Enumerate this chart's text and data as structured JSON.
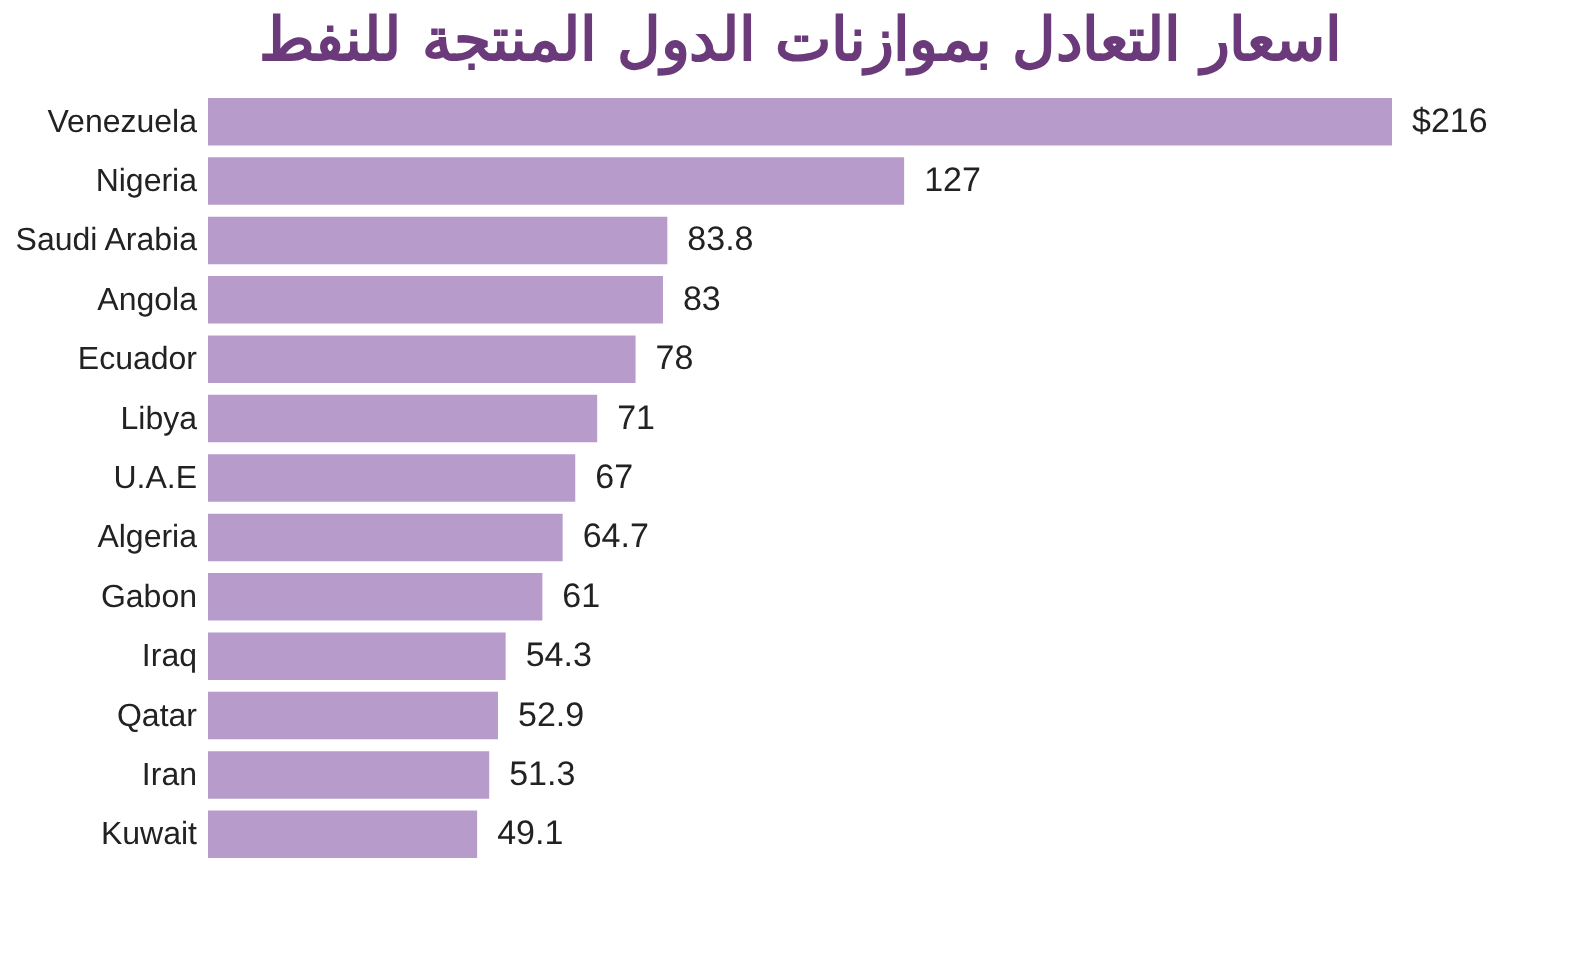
{
  "chart_data": {
    "type": "bar",
    "orientation": "horizontal",
    "title": "اسعار التعادل بموازنات الدول المنتجة للنفط",
    "categories": [
      "Venezuela",
      "Nigeria",
      "Saudi Arabia",
      "Angola",
      "Ecuador",
      "Libya",
      "U.A.E",
      "Algeria",
      "Gabon",
      "Iraq",
      "Qatar",
      "Iran",
      "Kuwait"
    ],
    "values": [
      216,
      127,
      83.8,
      83,
      78,
      71,
      67,
      64.7,
      61,
      54.3,
      52.9,
      51.3,
      49.1
    ],
    "value_labels": [
      "$216",
      "127",
      "83.8",
      "83",
      "78",
      "71",
      "67",
      "64.7",
      "61",
      "54.3",
      "52.9",
      "51.3",
      "49.1"
    ],
    "color": "#b79ccb"
  }
}
